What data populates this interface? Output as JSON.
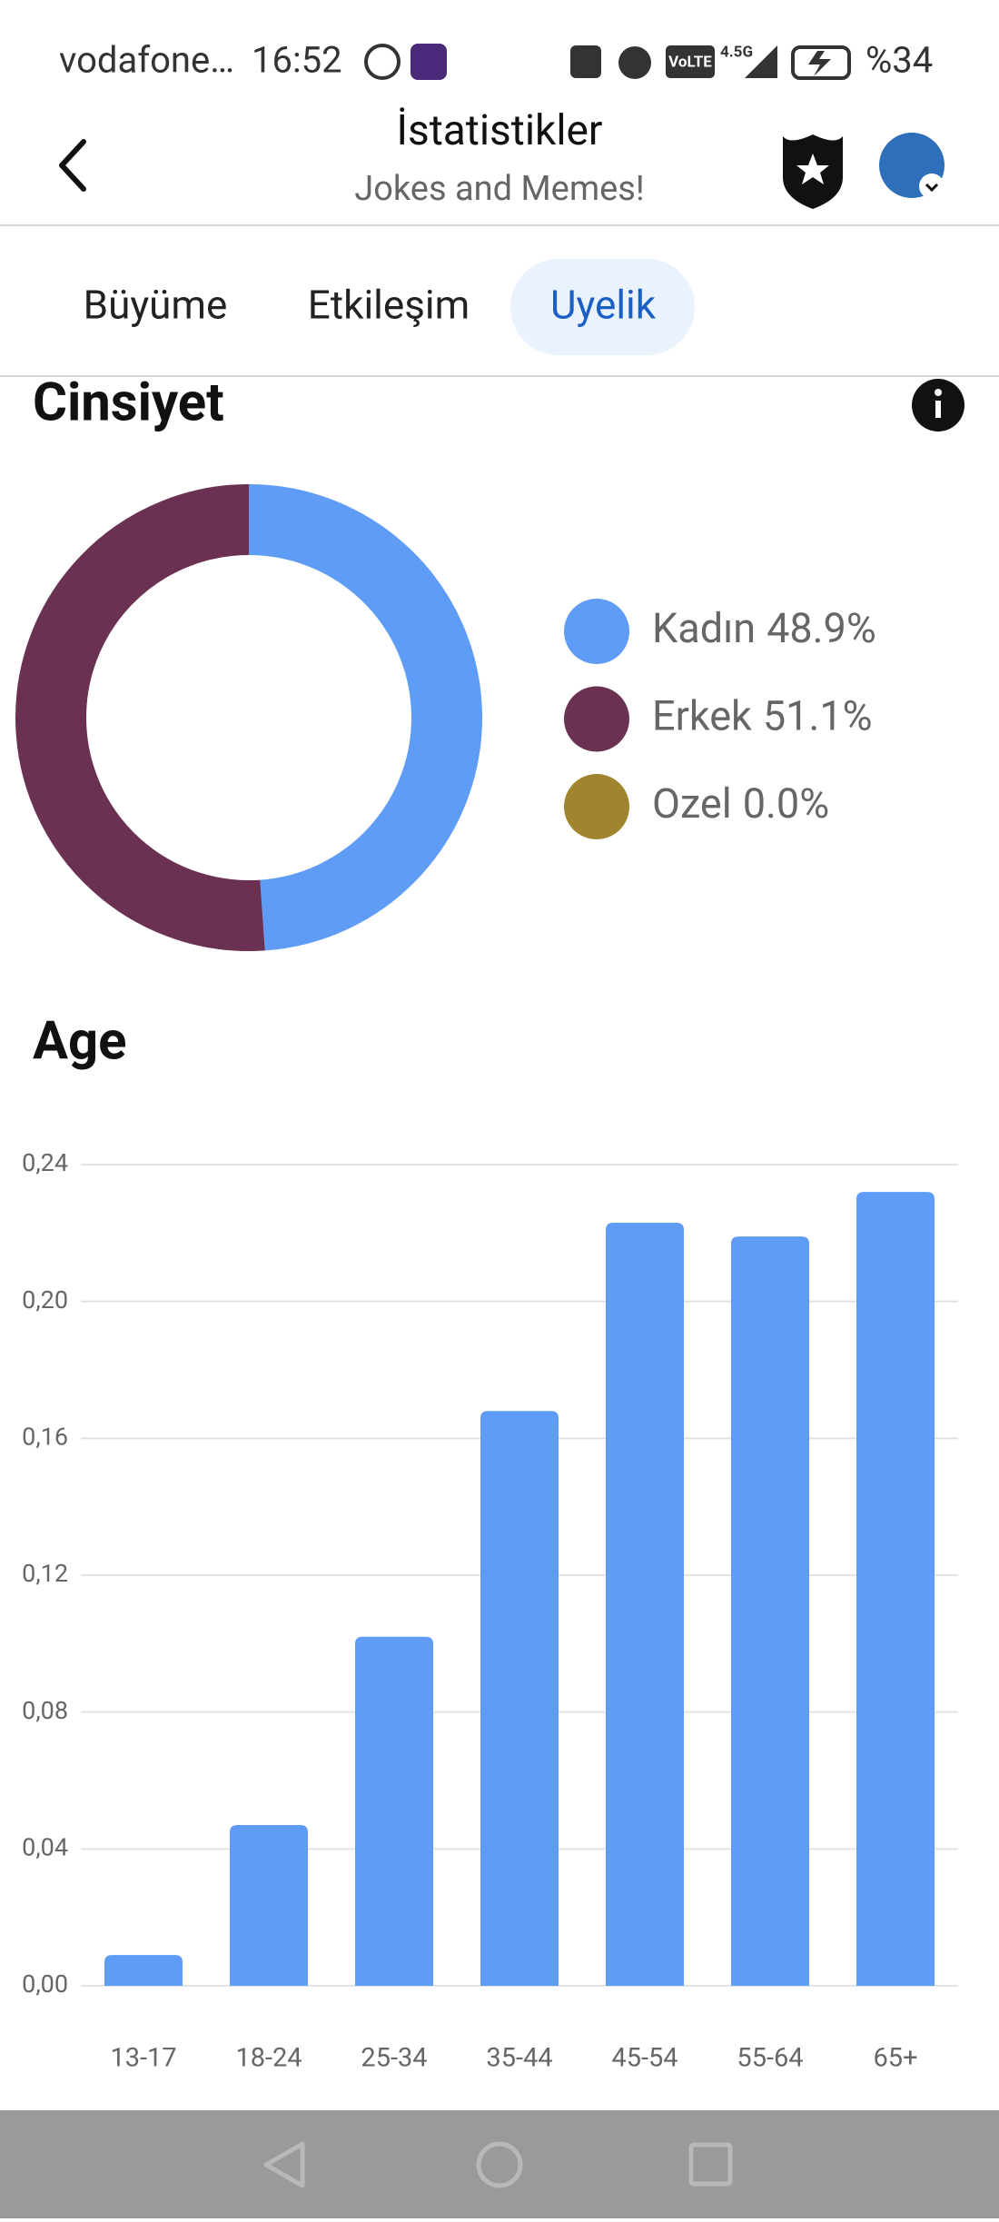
{
  "status_bar": {
    "carrier": "vodafone…",
    "time": "16:52",
    "volte": "VoLTE",
    "network": "4.5G",
    "battery": "%34"
  },
  "header": {
    "title": "İstatistikler",
    "subtitle": "Jokes and Memes!"
  },
  "tabs": [
    "Büyüme",
    "Etkileşim",
    "Uyelik"
  ],
  "chart_data": [
    {
      "type": "donut",
      "title": "Cinsiyet",
      "categories": [
        "Kadın",
        "Erkek",
        "Ozel"
      ],
      "values": [
        48.9,
        51.1,
        0.0
      ],
      "value_labels": [
        "48.9%",
        "51.1%",
        "0.0%"
      ],
      "colors": [
        "#5f9cf6",
        "#6b3152",
        "#a0852e"
      ]
    },
    {
      "type": "bar",
      "title": "Age",
      "categories": [
        "13-17",
        "18-24",
        "25-34",
        "35-44",
        "45-54",
        "55-64",
        "65+"
      ],
      "values": [
        0.009,
        0.047,
        0.102,
        0.168,
        0.223,
        0.219,
        0.232
      ],
      "color": "#5f9cf6",
      "ylim": [
        0,
        0.24
      ],
      "yticks": [
        {
          "value": 0,
          "label": "0,00"
        },
        {
          "value": 0.04,
          "label": "0,04"
        },
        {
          "value": 0.08,
          "label": "0,08"
        },
        {
          "value": 0.12,
          "label": "0,12"
        },
        {
          "value": 0.16,
          "label": "0,16"
        },
        {
          "value": 0.2,
          "label": "0,20"
        },
        {
          "value": 0.24,
          "label": "0,24"
        }
      ],
      "grid": true
    }
  ]
}
